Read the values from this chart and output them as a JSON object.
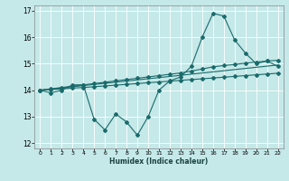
{
  "xlabel": "Humidex (Indice chaleur)",
  "bg_color": "#c5e8e8",
  "line_color": "#1a6b6b",
  "xlim": [
    -0.5,
    22.5
  ],
  "ylim": [
    11.8,
    17.2
  ],
  "yticks": [
    12,
    13,
    14,
    15,
    16,
    17
  ],
  "xticks": [
    0,
    1,
    2,
    3,
    4,
    5,
    6,
    7,
    8,
    9,
    10,
    11,
    12,
    13,
    14,
    15,
    16,
    17,
    18,
    19,
    20,
    21,
    22
  ],
  "series1_x": [
    0,
    1,
    2,
    3,
    4,
    5,
    6,
    7,
    8,
    9,
    10,
    11,
    12,
    13,
    14,
    15,
    16,
    17,
    18,
    19,
    20,
    21,
    22
  ],
  "series1_y": [
    14.0,
    13.9,
    14.0,
    14.2,
    14.2,
    12.9,
    12.5,
    13.1,
    12.8,
    12.3,
    13.0,
    14.0,
    14.35,
    14.5,
    14.9,
    16.0,
    16.9,
    16.8,
    15.9,
    15.4,
    15.0,
    15.1,
    14.9
  ],
  "series2_x": [
    0,
    1,
    2,
    3,
    4,
    5,
    6,
    7,
    8,
    9,
    10,
    11,
    12,
    13,
    14,
    15,
    16,
    17,
    18,
    19,
    20,
    21,
    22
  ],
  "series2_y": [
    14.0,
    14.05,
    14.1,
    14.15,
    14.2,
    14.25,
    14.3,
    14.35,
    14.4,
    14.45,
    14.5,
    14.55,
    14.6,
    14.65,
    14.72,
    14.8,
    14.88,
    14.93,
    14.97,
    15.02,
    15.06,
    15.1,
    15.13
  ],
  "series3_x": [
    0,
    1,
    2,
    3,
    4,
    5,
    6,
    7,
    8,
    9,
    10,
    11,
    12,
    13,
    14,
    15,
    16,
    17,
    18,
    19,
    20,
    21,
    22
  ],
  "series3_y": [
    14.0,
    14.02,
    14.05,
    14.08,
    14.1,
    14.13,
    14.16,
    14.19,
    14.22,
    14.25,
    14.28,
    14.31,
    14.34,
    14.37,
    14.4,
    14.43,
    14.46,
    14.49,
    14.52,
    14.55,
    14.58,
    14.61,
    14.64
  ],
  "series4_x": [
    0,
    22
  ],
  "series4_y": [
    14.0,
    14.95
  ]
}
